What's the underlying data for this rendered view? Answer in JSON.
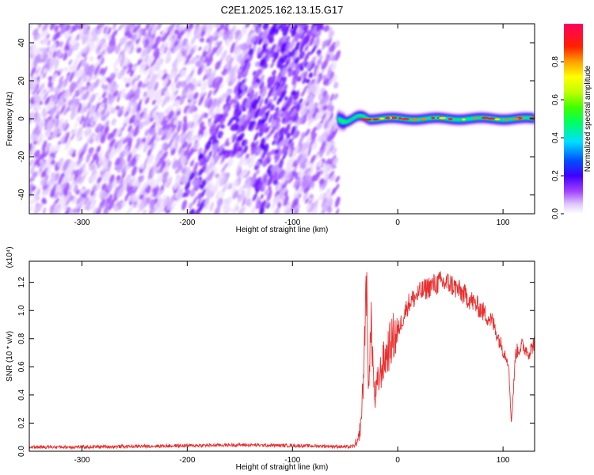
{
  "chart_data": [
    {
      "type": "heatmap",
      "title": "C2E1.2025.162.13.15.G17",
      "xlabel": "Height of straight line (km)",
      "ylabel": "Frequency (Hz)",
      "xlim": [
        -350,
        130
      ],
      "ylim": [
        -50,
        50
      ],
      "xticks": [
        "-300",
        "-200",
        "-100",
        "0",
        "100"
      ],
      "xtick_values": [
        -300,
        -200,
        -100,
        0,
        100
      ],
      "yticks": [
        "-40",
        "-20",
        "0",
        "20",
        "40"
      ],
      "ytick_values": [
        -40,
        -20,
        0,
        20,
        40
      ],
      "colorbar": {
        "label": "Normalized spectral amplitude",
        "range": [
          0,
          1
        ],
        "ticks": [
          "0.0",
          "0.2",
          "0.4",
          "0.6",
          "0.8"
        ],
        "tick_values": [
          0.0,
          0.2,
          0.4,
          0.6,
          0.8
        ],
        "colormap": [
          "#ffffff",
          "#e8d0ff",
          "#a040ff",
          "#4000ff",
          "#0060ff",
          "#00ffff",
          "#00ff40",
          "#80ff00",
          "#ffff00",
          "#ff8000",
          "#ff0000",
          "#ff0080"
        ]
      },
      "noise_region_x": [
        -350,
        -57
      ],
      "signal_band": {
        "x_range": [
          -57,
          130
        ],
        "center_frequency_hz": 0,
        "peak_amplitude": 1.0
      }
    },
    {
      "type": "line",
      "title": "",
      "xlabel": "Height of straight line (km)",
      "ylabel": "SNR (10 * v/v)",
      "yscale_label": "(x10⁴)",
      "xlim": [
        -350,
        130
      ],
      "ylim": [
        0,
        1.35
      ],
      "xticks": [
        "-300",
        "-200",
        "-100",
        "0",
        "100"
      ],
      "xtick_values": [
        -300,
        -200,
        -100,
        0,
        100
      ],
      "yticks": [
        "0.0",
        "0.2",
        "0.4",
        "0.6",
        "0.8",
        "1.0",
        "1.2"
      ],
      "ytick_values": [
        0.0,
        0.2,
        0.4,
        0.6,
        0.8,
        1.0,
        1.2
      ],
      "series": [
        {
          "color": "#e83030",
          "x": [
            -350,
            -300,
            -250,
            -200,
            -150,
            -100,
            -60,
            -45,
            -38,
            -35,
            -32,
            -30,
            -28,
            -25,
            -22,
            -20,
            -15,
            -10,
            -5,
            0,
            5,
            10,
            20,
            30,
            40,
            50,
            60,
            70,
            80,
            90,
            100,
            105,
            108,
            112,
            118,
            125,
            130
          ],
          "y": [
            0.03,
            0.03,
            0.035,
            0.04,
            0.045,
            0.04,
            0.035,
            0.03,
            0.05,
            0.2,
            0.6,
            1.3,
            0.5,
            0.9,
            0.35,
            0.45,
            0.6,
            0.7,
            0.8,
            0.85,
            0.95,
            1.05,
            1.12,
            1.17,
            1.2,
            1.19,
            1.13,
            1.07,
            1.0,
            0.92,
            0.72,
            0.65,
            0.2,
            0.7,
            0.75,
            0.7,
            0.78
          ]
        }
      ]
    }
  ]
}
